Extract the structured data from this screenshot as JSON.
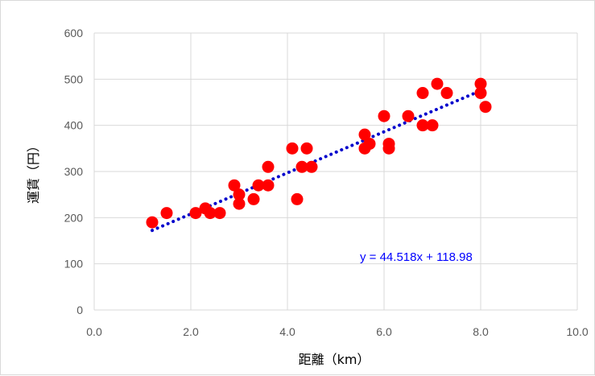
{
  "chart_data": {
    "type": "scatter",
    "title": "",
    "xlabel": "距離（km）",
    "ylabel": "運賃（円）",
    "xlim": [
      0,
      10
    ],
    "ylim": [
      0,
      600
    ],
    "xticks": [
      "0.0",
      "2.0",
      "4.0",
      "6.0",
      "8.0",
      "10.0"
    ],
    "yticks": [
      "0",
      "100",
      "200",
      "300",
      "400",
      "500",
      "600"
    ],
    "grid": true,
    "legend": "none",
    "points": [
      {
        "x": 1.2,
        "y": 190
      },
      {
        "x": 1.5,
        "y": 210
      },
      {
        "x": 2.1,
        "y": 210
      },
      {
        "x": 2.3,
        "y": 220
      },
      {
        "x": 2.4,
        "y": 210
      },
      {
        "x": 2.6,
        "y": 210
      },
      {
        "x": 2.9,
        "y": 270
      },
      {
        "x": 3.0,
        "y": 230
      },
      {
        "x": 3.0,
        "y": 250
      },
      {
        "x": 3.3,
        "y": 240
      },
      {
        "x": 3.4,
        "y": 270
      },
      {
        "x": 3.6,
        "y": 310
      },
      {
        "x": 3.6,
        "y": 270
      },
      {
        "x": 4.1,
        "y": 350
      },
      {
        "x": 4.2,
        "y": 240
      },
      {
        "x": 4.3,
        "y": 310
      },
      {
        "x": 4.4,
        "y": 350
      },
      {
        "x": 4.5,
        "y": 310
      },
      {
        "x": 5.6,
        "y": 380
      },
      {
        "x": 5.6,
        "y": 350
      },
      {
        "x": 5.7,
        "y": 360
      },
      {
        "x": 6.0,
        "y": 420
      },
      {
        "x": 6.1,
        "y": 360
      },
      {
        "x": 6.1,
        "y": 350
      },
      {
        "x": 6.5,
        "y": 420
      },
      {
        "x": 6.8,
        "y": 470
      },
      {
        "x": 6.8,
        "y": 400
      },
      {
        "x": 7.0,
        "y": 400
      },
      {
        "x": 7.1,
        "y": 490
      },
      {
        "x": 7.3,
        "y": 470
      },
      {
        "x": 8.0,
        "y": 490
      },
      {
        "x": 8.0,
        "y": 470
      },
      {
        "x": 8.1,
        "y": 440
      }
    ],
    "trendline": {
      "type": "linear",
      "slope": 44.518,
      "intercept": 118.98,
      "x_range": [
        1.2,
        8.1
      ],
      "label": "y = 44.518x + 118.98"
    },
    "colors": {
      "points": "#ff0000",
      "trendline": "#0000cc",
      "equation": "#0000ff",
      "grid": "#d9d9d9",
      "ticks": "#595959"
    }
  }
}
